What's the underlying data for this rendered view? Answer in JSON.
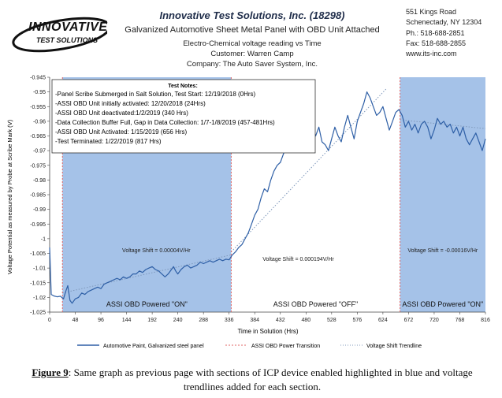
{
  "header": {
    "company_title": "Innovative Test Solutions, Inc. (18298)",
    "subtitle": "Galvanized Automotive Sheet Metal Panel with OBD Unit Attached",
    "line2": "Electro-Chemical voltage reading vs Time",
    "line3": "Customer: Warren Camp",
    "line4": "Company: The Auto Saver System, Inc."
  },
  "logo": {
    "big": "INNOVATIVE",
    "small": "TEST SOLUTIONS"
  },
  "address": {
    "line1": "551 Kings Road",
    "line2": "Schenectady, NY 12304",
    "line3": "Ph.: 518-688-2851",
    "line4": "Fax: 518-688-2855",
    "line5": "www.its-inc.com"
  },
  "test_notes": {
    "title": "Test Notes:",
    "lines": [
      "-Panel Scribe Submerged in Salt Solution, Test Start: 12/19/2018 (0Hrs)",
      "-ASSI OBD Unit initially activated: 12/20/2018 (24Hrs)",
      "-ASSI OBD Unit deactivated:1/2/2019 (340 Hrs)",
      "-Data Collection Buffer Full, Gap in Data Collection: 1/7-1/8/2019 (457-481Hrs)",
      "-ASSI OBD Unit Activated: 1/15/2019 (656 Hrs)",
      "-Test Terminated: 1/22/2019 (817 Hrs)"
    ]
  },
  "chart_data": {
    "type": "line",
    "title": "",
    "xlabel": "Time in Solution (Hrs)",
    "ylabel": "Voltage Potential as measured by Probe at Scribe Mark (V)",
    "xlim": [
      0,
      816
    ],
    "ylim": [
      -1.025,
      -0.945
    ],
    "x_ticks": [
      0,
      48,
      96,
      144,
      192,
      240,
      288,
      336,
      384,
      432,
      480,
      528,
      576,
      624,
      672,
      720,
      768,
      816
    ],
    "y_ticks": [
      -0.945,
      -0.95,
      -0.955,
      -0.96,
      -0.965,
      -0.97,
      -0.975,
      -0.98,
      -0.985,
      -0.99,
      -0.995,
      -1,
      -1.005,
      -1.01,
      -1.015,
      -1.02,
      -1.025
    ],
    "y_tick_labels": [
      "-0.945",
      "-0.95",
      "-0.955",
      "-0.96",
      "-0.965",
      "-0.97",
      "-0.975",
      "-0.98",
      "-0.985",
      "-0.99",
      "-0.995",
      "-1",
      "-1.005",
      "-1.01",
      "-1.015",
      "-1.02",
      "-1.025"
    ],
    "grid": false,
    "legend_position": "bottom",
    "legend": [
      "Automotive Paint, Galvanized steel panel",
      "ASSI OBD Power Transition",
      "Voltage Shift Trendline"
    ],
    "colors": {
      "series": "#2e5fa6",
      "transition": "#e06666",
      "trend": "#7f98bb",
      "highlight": "#5b8fd6"
    },
    "highlight_regions": [
      {
        "from": 24,
        "to": 340,
        "label": "ASSI OBD Powered \"ON\"",
        "shift_label": "Voltage Shift = 0.00004V/Hr"
      },
      {
        "from": 656,
        "to": 817,
        "label": "ASSI OBD Powered \"ON\"",
        "shift_label": "Voltage Shift = -0.00016V/Hr"
      }
    ],
    "off_region": {
      "label": "ASSI OBD Powered \"OFF\"",
      "shift_label": "Voltage Shift = 0.000194V/Hr"
    },
    "series": [
      {
        "name": "Automotive Paint, Galvanized steel panel",
        "points": [
          [
            0,
            -1.003
          ],
          [
            3,
            -1.019
          ],
          [
            8,
            -1.0195
          ],
          [
            14,
            -1.0198
          ],
          [
            20,
            -1.0196
          ],
          [
            26,
            -1.0205
          ],
          [
            30,
            -1.018
          ],
          [
            34,
            -1.016
          ],
          [
            38,
            -1.021
          ],
          [
            42,
            -1.022
          ],
          [
            48,
            -1.0205
          ],
          [
            54,
            -1.02
          ],
          [
            60,
            -1.0185
          ],
          [
            66,
            -1.019
          ],
          [
            72,
            -1.018
          ],
          [
            78,
            -1.0175
          ],
          [
            84,
            -1.017
          ],
          [
            90,
            -1.0165
          ],
          [
            96,
            -1.017
          ],
          [
            102,
            -1.0155
          ],
          [
            108,
            -1.015
          ],
          [
            114,
            -1.0145
          ],
          [
            120,
            -1.014
          ],
          [
            126,
            -1.0135
          ],
          [
            132,
            -1.014
          ],
          [
            138,
            -1.013
          ],
          [
            144,
            -1.0135
          ],
          [
            150,
            -1.013
          ],
          [
            156,
            -1.012
          ],
          [
            162,
            -1.012
          ],
          [
            168,
            -1.011
          ],
          [
            174,
            -1.0115
          ],
          [
            180,
            -1.0105
          ],
          [
            186,
            -1.01
          ],
          [
            192,
            -1.0095
          ],
          [
            198,
            -1.0105
          ],
          [
            204,
            -1.011
          ],
          [
            210,
            -1.012
          ],
          [
            216,
            -1.013
          ],
          [
            222,
            -1.012
          ],
          [
            228,
            -1.0105
          ],
          [
            232,
            -1.0095
          ],
          [
            236,
            -1.011
          ],
          [
            240,
            -1.012
          ],
          [
            246,
            -1.0105
          ],
          [
            252,
            -1.0095
          ],
          [
            258,
            -1.009
          ],
          [
            264,
            -1.01
          ],
          [
            270,
            -1.0095
          ],
          [
            276,
            -1.009
          ],
          [
            282,
            -1.008
          ],
          [
            288,
            -1.0085
          ],
          [
            294,
            -1.008
          ],
          [
            300,
            -1.0075
          ],
          [
            306,
            -1.008
          ],
          [
            312,
            -1.0075
          ],
          [
            318,
            -1.007
          ],
          [
            324,
            -1.0075
          ],
          [
            330,
            -1.007
          ],
          [
            336,
            -1.0072
          ],
          [
            342,
            -1.0055
          ],
          [
            348,
            -1.0045
          ],
          [
            354,
            -1.003
          ],
          [
            360,
            -1.002
          ],
          [
            366,
            -1.0
          ],
          [
            372,
            -0.998
          ],
          [
            378,
            -0.995
          ],
          [
            384,
            -0.992
          ],
          [
            390,
            -0.99
          ],
          [
            396,
            -0.986
          ],
          [
            402,
            -0.983
          ],
          [
            408,
            -0.984
          ],
          [
            414,
            -0.98
          ],
          [
            420,
            -0.977
          ],
          [
            426,
            -0.975
          ],
          [
            432,
            -0.974
          ],
          [
            438,
            -0.971
          ],
          [
            444,
            -0.969
          ],
          [
            450,
            -0.966
          ],
          [
            456,
            -0.961
          ],
          [
            462,
            -0.963
          ],
          [
            468,
            -0.966
          ],
          [
            474,
            -0.962
          ],
          [
            480,
            -0.96
          ],
          [
            486,
            -0.958
          ],
          [
            492,
            -0.962
          ],
          [
            498,
            -0.965
          ],
          [
            504,
            -0.962
          ],
          [
            510,
            -0.967
          ],
          [
            516,
            -0.968
          ],
          [
            522,
            -0.97
          ],
          [
            528,
            -0.966
          ],
          [
            534,
            -0.962
          ],
          [
            540,
            -0.965
          ],
          [
            546,
            -0.967
          ],
          [
            552,
            -0.962
          ],
          [
            558,
            -0.958
          ],
          [
            564,
            -0.962
          ],
          [
            570,
            -0.966
          ],
          [
            576,
            -0.96
          ],
          [
            582,
            -0.957
          ],
          [
            588,
            -0.954
          ],
          [
            594,
            -0.95
          ],
          [
            600,
            -0.952
          ],
          [
            606,
            -0.955
          ],
          [
            612,
            -0.958
          ],
          [
            618,
            -0.957
          ],
          [
            624,
            -0.955
          ],
          [
            630,
            -0.959
          ],
          [
            636,
            -0.963
          ],
          [
            642,
            -0.96
          ],
          [
            648,
            -0.957
          ],
          [
            654,
            -0.956
          ],
          [
            660,
            -0.958
          ],
          [
            666,
            -0.962
          ],
          [
            672,
            -0.96
          ],
          [
            678,
            -0.963
          ],
          [
            684,
            -0.961
          ],
          [
            690,
            -0.964
          ],
          [
            696,
            -0.961
          ],
          [
            702,
            -0.96
          ],
          [
            708,
            -0.962
          ],
          [
            714,
            -0.966
          ],
          [
            720,
            -0.963
          ],
          [
            726,
            -0.959
          ],
          [
            732,
            -0.961
          ],
          [
            738,
            -0.96
          ],
          [
            744,
            -0.962
          ],
          [
            750,
            -0.961
          ],
          [
            756,
            -0.964
          ],
          [
            762,
            -0.962
          ],
          [
            768,
            -0.965
          ],
          [
            774,
            -0.962
          ],
          [
            780,
            -0.966
          ],
          [
            786,
            -0.968
          ],
          [
            792,
            -0.966
          ],
          [
            798,
            -0.964
          ],
          [
            804,
            -0.967
          ],
          [
            810,
            -0.97
          ],
          [
            816,
            -0.966
          ]
        ]
      }
    ],
    "trendlines": [
      {
        "from": [
          24,
          -1.0185
        ],
        "to": [
          340,
          -1.0055
        ]
      },
      {
        "from": [
          340,
          -1.0045
        ],
        "to": [
          630,
          -0.949
        ]
      },
      {
        "from": [
          656,
          -0.9595
        ],
        "to": [
          816,
          -0.9625
        ]
      }
    ]
  },
  "caption": {
    "label": "Figure 9",
    "text": ": Same graph as previous page with sections of ICP device enabled highlighted in blue and voltage trendlines added for each section."
  }
}
